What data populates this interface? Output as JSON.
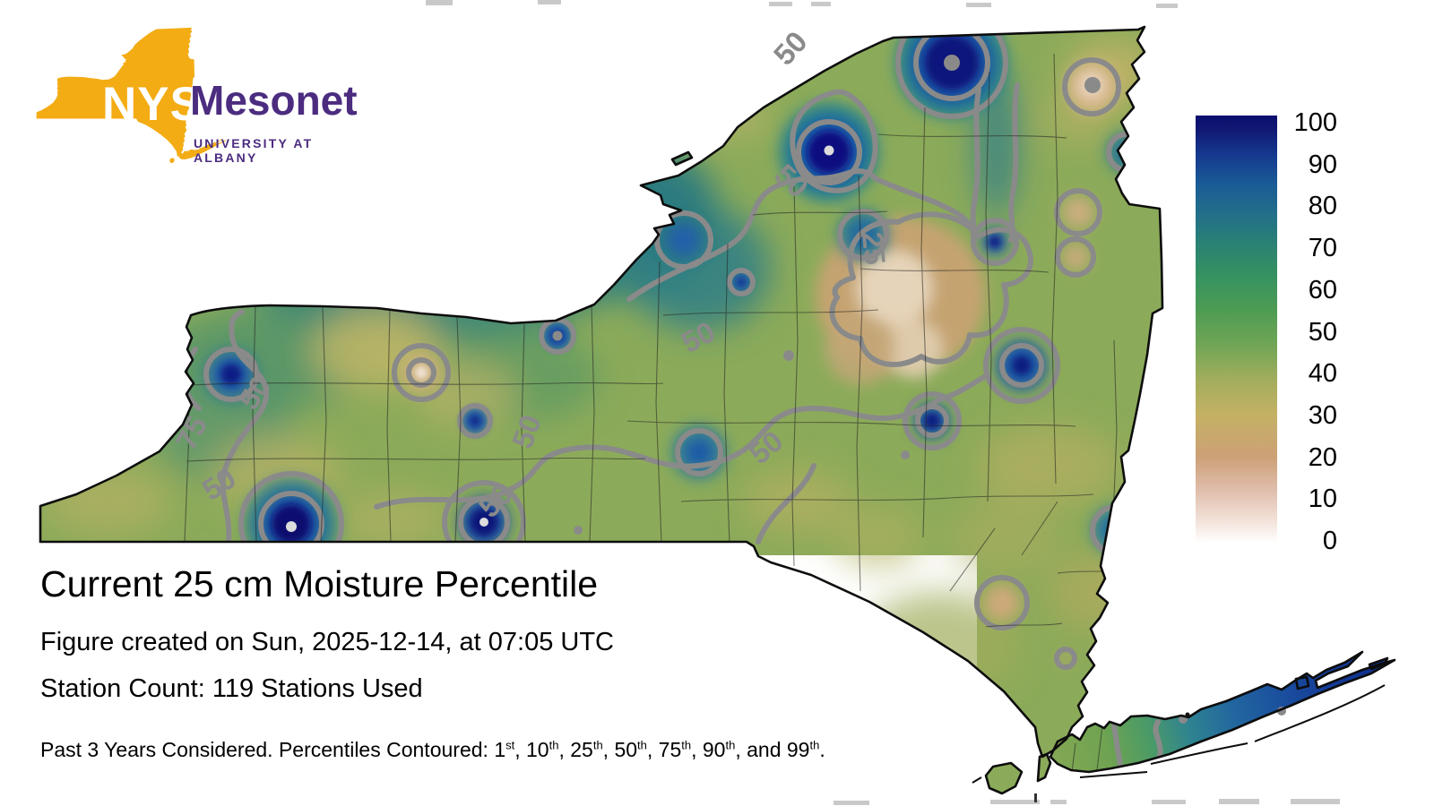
{
  "logo": {
    "nys": "NYS",
    "mesonet": "Mesonet",
    "university": "UNIVERSITY AT ALBANY",
    "state_color": "#f3ac14",
    "purple": "#4b2c7f"
  },
  "title": "Current 25 cm Moisture Percentile",
  "subtitle_created": "Figure created on Sun, 2025-12-14, at 07:05 UTC",
  "subtitle_stations": "Station Count: 119 Stations Used",
  "footnote": {
    "prefix": "Past 3 Years Considered. Percentiles Contoured: ",
    "percentiles": [
      {
        "value": "1",
        "suffix": "st"
      },
      {
        "value": "10",
        "suffix": "th"
      },
      {
        "value": "25",
        "suffix": "th"
      },
      {
        "value": "50",
        "suffix": "th"
      },
      {
        "value": "75",
        "suffix": "th"
      },
      {
        "value": "90",
        "suffix": "th"
      },
      {
        "value": "99",
        "suffix": "th"
      }
    ],
    "end": "."
  },
  "colorbar": {
    "ticks": [
      "100",
      "90",
      "80",
      "70",
      "60",
      "50",
      "40",
      "30",
      "20",
      "10",
      "0"
    ],
    "min": 0,
    "max": 100,
    "color_high": "#0a0d6e",
    "color_mid": "#4f9c53",
    "color_low": "#ffffff"
  },
  "map": {
    "contour_labels": [
      "50",
      "50",
      "25",
      "50",
      "75",
      "50",
      "50",
      "50",
      "50",
      "50"
    ],
    "contour_levels_shown": [
      "25",
      "50",
      "75"
    ],
    "contour_line_color": "#8a8a8a"
  }
}
